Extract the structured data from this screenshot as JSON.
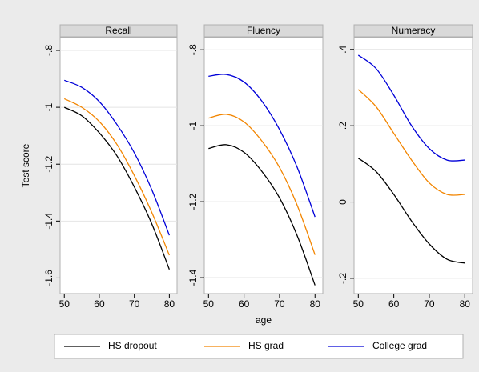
{
  "chart_data": [
    {
      "type": "line",
      "title": "Recall",
      "ylabel": "Test score",
      "x": [
        50,
        55,
        60,
        65,
        70,
        75,
        80
      ],
      "series": [
        {
          "name": "HS dropout",
          "color": "#000000",
          "values": [
            -1.0,
            -1.03,
            -1.09,
            -1.17,
            -1.28,
            -1.41,
            -1.57
          ]
        },
        {
          "name": "HS grad",
          "color": "#f28500",
          "values": [
            -0.97,
            -1.0,
            -1.05,
            -1.13,
            -1.24,
            -1.37,
            -1.52
          ]
        },
        {
          "name": "College grad",
          "color": "#0000d8",
          "values": [
            -0.905,
            -0.93,
            -0.98,
            -1.06,
            -1.16,
            -1.29,
            -1.45
          ]
        }
      ],
      "xlim": [
        48.8,
        82.2
      ],
      "xticks": [
        50,
        60,
        70,
        80
      ],
      "ylim": [
        -1.655,
        -0.755
      ],
      "yticks": [
        {
          "value": -0.8,
          "label": "-.8"
        },
        -1,
        -1.2,
        -1.4,
        -1.6
      ],
      "grid": true
    },
    {
      "type": "line",
      "title": "Fluency",
      "xlabel": "age",
      "x": [
        50,
        55,
        60,
        65,
        70,
        75,
        80
      ],
      "series": [
        {
          "name": "HS dropout",
          "color": "#000000",
          "values": [
            -1.06,
            -1.05,
            -1.07,
            -1.12,
            -1.19,
            -1.29,
            -1.42
          ]
        },
        {
          "name": "HS grad",
          "color": "#f28500",
          "values": [
            -0.98,
            -0.97,
            -0.99,
            -1.04,
            -1.11,
            -1.21,
            -1.34
          ]
        },
        {
          "name": "College grad",
          "color": "#0000d8",
          "values": [
            -0.87,
            -0.865,
            -0.885,
            -0.935,
            -1.01,
            -1.11,
            -1.24
          ]
        }
      ],
      "xlim": [
        48.8,
        82.2
      ],
      "xticks": [
        50,
        60,
        70,
        80
      ],
      "ylim": [
        -1.442,
        -0.768
      ],
      "yticks": [
        {
          "value": -0.8,
          "label": "-.8"
        },
        -1,
        -1.2,
        -1.4
      ],
      "grid": true
    },
    {
      "type": "line",
      "title": "Numeracy",
      "x": [
        50,
        55,
        60,
        65,
        70,
        75,
        80
      ],
      "series": [
        {
          "name": "HS dropout",
          "color": "#000000",
          "values": [
            0.115,
            0.08,
            0.02,
            -0.05,
            -0.11,
            -0.15,
            -0.16
          ]
        },
        {
          "name": "HS grad",
          "color": "#f28500",
          "values": [
            0.295,
            0.25,
            0.18,
            0.11,
            0.05,
            0.02,
            0.02
          ]
        },
        {
          "name": "College grad",
          "color": "#0000d8",
          "values": [
            0.385,
            0.35,
            0.28,
            0.2,
            0.14,
            0.11,
            0.11
          ]
        }
      ],
      "xlim": [
        48.8,
        82.2
      ],
      "xticks": [
        50,
        60,
        70,
        80
      ],
      "ylim": [
        -0.24,
        0.431
      ],
      "yticks": [
        {
          "value": 0.4,
          "label": ".4"
        },
        {
          "value": 0.2,
          "label": ".2"
        },
        0,
        {
          "value": -0.2,
          "label": "-.2"
        }
      ],
      "grid": true
    }
  ]
}
